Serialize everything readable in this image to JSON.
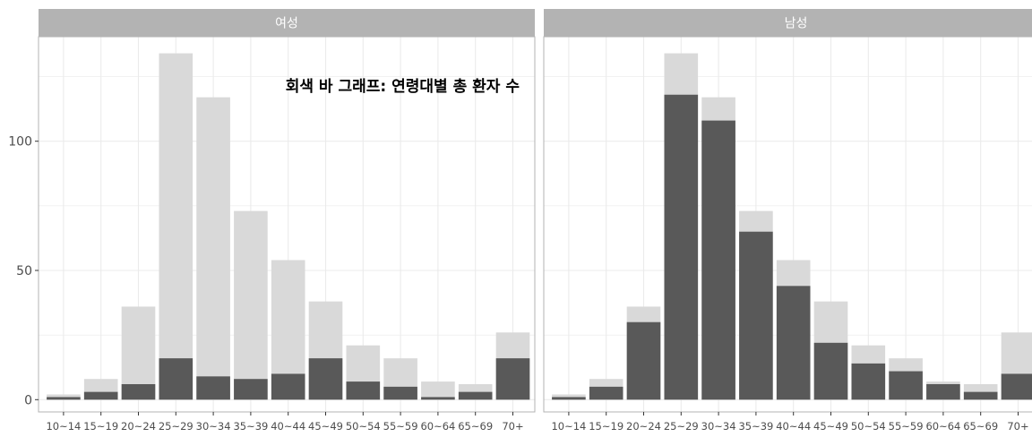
{
  "chart_data": {
    "type": "bar",
    "layout": "faceted-overlay",
    "annotation": "회색 바 그래프: 연령대별 총 환자 수",
    "categories": [
      "10~14",
      "15~19",
      "20~24",
      "25~29",
      "30~34",
      "35~39",
      "40~44",
      "45~49",
      "50~54",
      "55~59",
      "60~64",
      "65~69",
      "70+"
    ],
    "total_values": [
      2,
      8,
      36,
      134,
      117,
      73,
      54,
      38,
      21,
      16,
      7,
      6,
      26
    ],
    "ylim": [
      0,
      140
    ],
    "yticks": [
      0,
      50,
      100
    ],
    "grid": true,
    "colors": {
      "total": "#d9d9d9",
      "group": "#595959",
      "strip": "#b3b3b3",
      "strip_text": "#ffffff",
      "grid": "#ebebeb",
      "border": "#b3b3b3",
      "axis_text": "#4d4d4d"
    },
    "facets": [
      {
        "label": "여성",
        "values": [
          1,
          3,
          6,
          16,
          9,
          8,
          10,
          16,
          7,
          5,
          1,
          3,
          16
        ]
      },
      {
        "label": "남성",
        "values": [
          1,
          5,
          30,
          118,
          108,
          65,
          44,
          22,
          14,
          11,
          6,
          3,
          10
        ]
      }
    ]
  }
}
